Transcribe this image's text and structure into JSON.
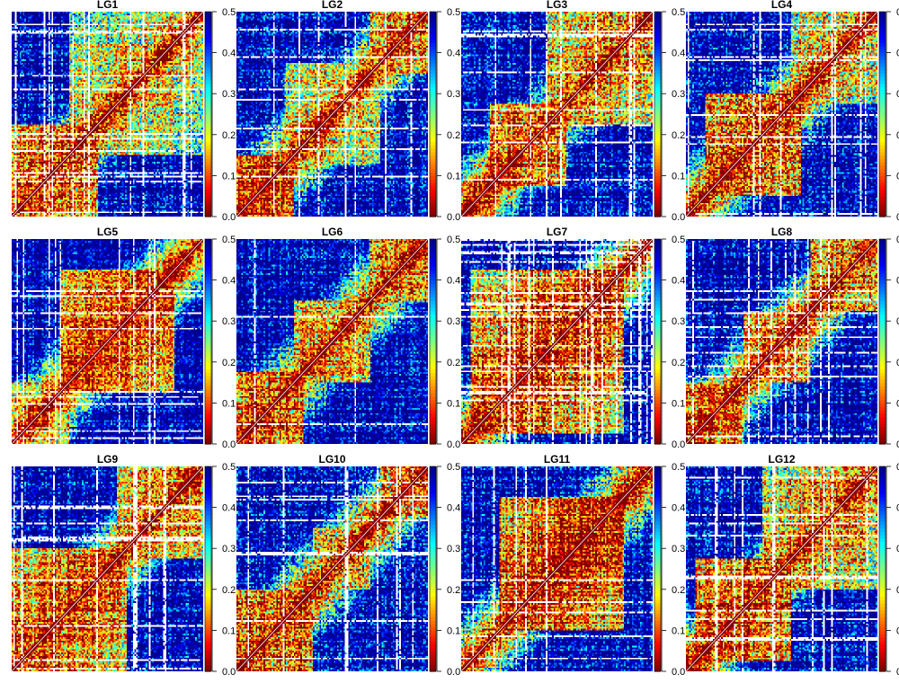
{
  "chart_data": {
    "type": "heatmap",
    "figure_layout": "3 rows x 4 columns of linkage-group heatmaps, each with its own colour bar",
    "colorscale": {
      "direction": "low values dark red, high values dark blue",
      "stops": [
        "#7f0000",
        "#ff0000",
        "#ff8000",
        "#ffff00",
        "#80ff80",
        "#00ffff",
        "#0080ff",
        "#0000ff",
        "#00008f"
      ]
    },
    "colorbar": {
      "range": [
        0,
        0.5
      ],
      "ticks": [
        0.0,
        0.1,
        0.2,
        0.3,
        0.4,
        0.5
      ],
      "tick_labels": [
        "0.0",
        "0.1",
        "0.2",
        "0.3",
        "0.4",
        "0.5"
      ]
    },
    "diagonal_line": true,
    "panels": [
      {
        "title": "LG1",
        "markers": 120,
        "blocks": [
          [
            0.0,
            0.45,
            0.05
          ],
          [
            0.3,
            1.0,
            0.15
          ]
        ],
        "noise": 0.55,
        "missing": 0.08,
        "truncated_ticks": false
      },
      {
        "title": "LG2",
        "markers": 120,
        "blocks": [
          [
            0.0,
            0.3,
            0.05
          ],
          [
            0.25,
            0.75,
            0.15
          ],
          [
            0.7,
            1.0,
            0.1
          ]
        ],
        "noise": 0.55,
        "missing": 0.06,
        "truncated_ticks": false
      },
      {
        "title": "LG3",
        "markers": 120,
        "blocks": [
          [
            0.15,
            0.55,
            0.05
          ],
          [
            0.45,
            1.0,
            0.1
          ]
        ],
        "noise": 0.55,
        "missing": 0.07,
        "truncated_ticks": false
      },
      {
        "title": "LG4",
        "markers": 120,
        "blocks": [
          [
            0.1,
            0.6,
            0.05
          ],
          [
            0.55,
            1.0,
            0.15
          ]
        ],
        "noise": 0.6,
        "missing": 0.07,
        "truncated_ticks": true
      },
      {
        "title": "LG5",
        "markers": 120,
        "blocks": [
          [
            0.25,
            0.85,
            0.05
          ],
          [
            0.0,
            0.3,
            0.15
          ]
        ],
        "noise": 0.5,
        "missing": 0.05,
        "truncated_ticks": false
      },
      {
        "title": "LG6",
        "markers": 120,
        "blocks": [
          [
            0.0,
            0.35,
            0.05
          ],
          [
            0.3,
            0.7,
            0.1
          ],
          [
            0.7,
            1.0,
            0.1
          ]
        ],
        "noise": 0.55,
        "missing": 0.07,
        "truncated_ticks": false
      },
      {
        "title": "LG7",
        "markers": 120,
        "blocks": [
          [
            0.05,
            0.85,
            0.03
          ]
        ],
        "noise": 0.55,
        "missing": 0.12,
        "truncated_ticks": false
      },
      {
        "title": "LG8",
        "markers": 120,
        "blocks": [
          [
            0.0,
            0.3,
            0.05
          ],
          [
            0.3,
            0.65,
            0.1
          ],
          [
            0.65,
            1.0,
            0.1
          ]
        ],
        "noise": 0.55,
        "missing": 0.1,
        "truncated_ticks": true
      },
      {
        "title": "LG9",
        "markers": 120,
        "blocks": [
          [
            0.0,
            0.6,
            0.05
          ],
          [
            0.55,
            1.0,
            0.1
          ]
        ],
        "noise": 0.55,
        "missing": 0.08,
        "truncated_ticks": false
      },
      {
        "title": "LG10",
        "markers": 120,
        "blocks": [
          [
            0.0,
            0.4,
            0.05
          ],
          [
            0.4,
            0.7,
            0.15
          ],
          [
            0.75,
            1.0,
            0.1
          ]
        ],
        "noise": 0.6,
        "missing": 0.09,
        "truncated_ticks": false
      },
      {
        "title": "LG11",
        "markers": 120,
        "blocks": [
          [
            0.2,
            0.85,
            0.02
          ]
        ],
        "noise": 0.55,
        "missing": 0.07,
        "truncated_ticks": false
      },
      {
        "title": "LG12",
        "markers": 120,
        "blocks": [
          [
            0.05,
            0.55,
            0.05
          ],
          [
            0.4,
            1.0,
            0.1
          ]
        ],
        "noise": 0.55,
        "missing": 0.07,
        "truncated_ticks": true
      }
    ]
  }
}
